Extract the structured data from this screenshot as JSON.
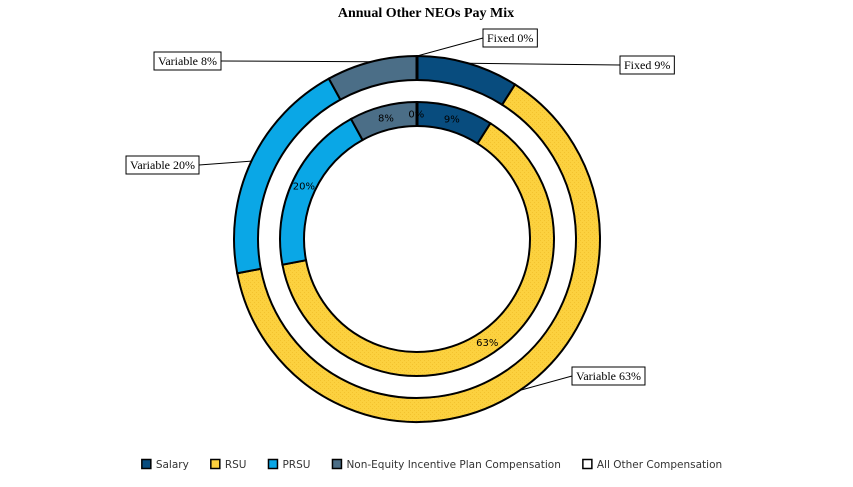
{
  "chart_data": {
    "type": "pie",
    "subtype": "nested-donut",
    "title": "Annual Other NEOs Pay Mix",
    "categories": [
      "Salary",
      "RSU",
      "PRSU",
      "Non-Equity Incentive Plan Compensation",
      "All Other Compensation"
    ],
    "colors": [
      "#084c7e",
      "#fcd13f",
      "#0aa7e6",
      "#4b6e87",
      "#ffffff"
    ],
    "series": [
      {
        "ring": "inner",
        "values": [
          9,
          63,
          20,
          8,
          0
        ],
        "labels": [
          "9%",
          "63%",
          "20%",
          "8%",
          "0%"
        ]
      },
      {
        "ring": "outer",
        "values": [
          9,
          63,
          20,
          8,
          0
        ],
        "callouts": [
          "Fixed 9%",
          "Variable 63%",
          "Variable 20%",
          "Variable 8%",
          "Fixed 0%"
        ]
      }
    ],
    "legend_position": "bottom"
  }
}
